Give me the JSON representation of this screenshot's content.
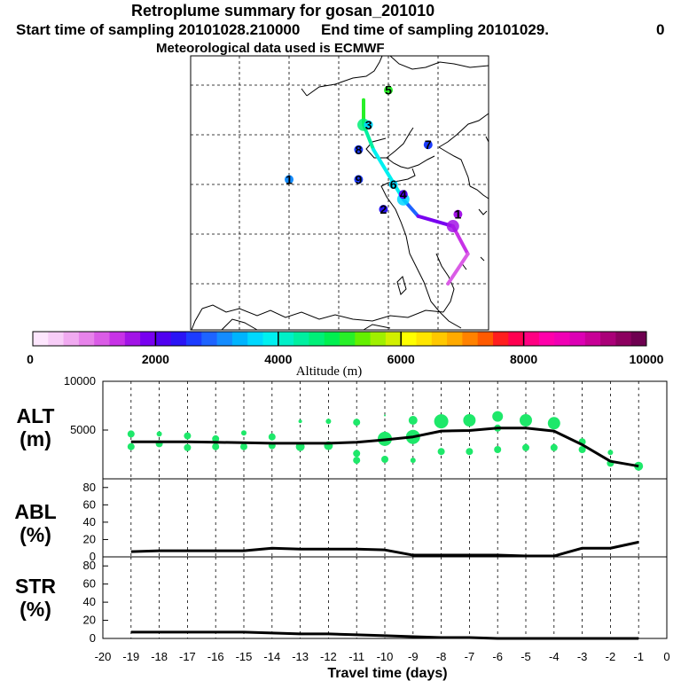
{
  "header": {
    "title": "Retroplume summary for gosan_201010",
    "start": "Start time of sampling 20101028.210000",
    "end": "End time of sampling 20101029.",
    "end_suffix": "0",
    "met": "Meteorological data used is ECMWF"
  },
  "map": {
    "trajectory": [
      {
        "lon": 117.5,
        "lat": 48.5,
        "alt": 5500
      },
      {
        "lon": 117.5,
        "lat": 46.0,
        "alt": 4500
      },
      {
        "lon": 118.5,
        "lat": 43.5,
        "alt": 4000
      },
      {
        "lon": 121.5,
        "lat": 38.5,
        "alt": 3600
      },
      {
        "lon": 123.0,
        "lat": 36.8,
        "alt": 2200
      },
      {
        "lon": 126.5,
        "lat": 35.8,
        "alt": 1500
      },
      {
        "lon": 128.0,
        "lat": 33.0,
        "alt": 1200
      },
      {
        "lon": 126.0,
        "lat": 30.0,
        "alt": 1100
      }
    ],
    "markers": [
      {
        "label": "5",
        "lon": 120.0,
        "lat": 49.5,
        "alt": 5000
      },
      {
        "label": "3",
        "lon": 118.0,
        "lat": 46.0,
        "alt": 3500
      },
      {
        "label": "8",
        "lon": 117.0,
        "lat": 43.5,
        "alt": 2500
      },
      {
        "label": "7",
        "lon": 124.0,
        "lat": 44.0,
        "alt": 2500
      },
      {
        "label": "1",
        "lon": 110.0,
        "lat": 40.5,
        "alt": 3000
      },
      {
        "label": "9",
        "lon": 117.0,
        "lat": 40.5,
        "alt": 2500
      },
      {
        "label": "2",
        "lon": 119.5,
        "lat": 37.5,
        "alt": 2300
      },
      {
        "label": "6",
        "lon": 120.5,
        "lat": 40.0,
        "alt": 3500
      },
      {
        "label": "4",
        "lon": 121.5,
        "lat": 39.0,
        "alt": 2000
      },
      {
        "label": "1",
        "lon": 127.0,
        "lat": 37.0,
        "alt": 1500
      }
    ]
  },
  "colorbar": {
    "tick_labels": [
      "0",
      "2000",
      "4000",
      "6000",
      "8000",
      "10000"
    ],
    "title": "Altitude (m)"
  },
  "panels": {
    "alt": {
      "label_line1": "ALT",
      "label_line2": "(m)"
    },
    "abl": {
      "label_line1": "ABL",
      "label_line2": "(%)"
    },
    "str": {
      "label_line1": "STR",
      "label_line2": "(%)"
    }
  },
  "xaxis": {
    "title": "Travel time (days)"
  },
  "chart_data": {
    "type": "line",
    "x": [
      -19,
      -18,
      -17,
      -16,
      -15,
      -14,
      -13,
      -12,
      -11,
      -10,
      -9,
      -8,
      -7,
      -6,
      -5,
      -4,
      -3,
      -2,
      -1
    ],
    "xlim": [
      -20,
      0
    ],
    "xtick_labels": [
      "-20",
      "-19",
      "-18",
      "-17",
      "-16",
      "-15",
      "-14",
      "-13",
      "-12",
      "-11",
      "-10",
      "-9",
      "-8",
      "-7",
      "-6",
      "-5",
      "-4",
      "-3",
      "-2",
      "-1",
      "0"
    ],
    "xlabel": "Travel time (days)",
    "series": [
      {
        "name": "ALT",
        "unit": "m",
        "ylim": [
          0,
          10000
        ],
        "ytick_labels": [
          "5000",
          "10000"
        ],
        "values": [
          3800,
          3800,
          3800,
          3750,
          3700,
          3650,
          3650,
          3650,
          3750,
          4000,
          4300,
          4900,
          4950,
          5200,
          5200,
          4900,
          3500,
          1800,
          1300
        ]
      },
      {
        "name": "ABL",
        "unit": "%",
        "ylim": [
          0,
          90
        ],
        "ytick_labels": [
          "0",
          "20",
          "40",
          "60",
          "80"
        ],
        "values": [
          6,
          7,
          7,
          7,
          7,
          10,
          9,
          9,
          9,
          8,
          2,
          2,
          2,
          2,
          1,
          1,
          10,
          10,
          17
        ]
      },
      {
        "name": "STR",
        "unit": "%",
        "ylim": [
          0,
          90
        ],
        "ytick_labels": [
          "0",
          "20",
          "40",
          "60",
          "80"
        ],
        "values": [
          7,
          7,
          7,
          7,
          7,
          6,
          5,
          5,
          4,
          3,
          2,
          1,
          1,
          0,
          0,
          0,
          0,
          0,
          0
        ]
      }
    ],
    "alt_spread_points": [
      {
        "x": -19,
        "y": 4600,
        "r": 4
      },
      {
        "x": -19,
        "y": 3300,
        "r": 4
      },
      {
        "x": -18,
        "y": 4600,
        "r": 3
      },
      {
        "x": -18,
        "y": 3600,
        "r": 4
      },
      {
        "x": -17,
        "y": 4400,
        "r": 4
      },
      {
        "x": -17,
        "y": 3200,
        "r": 4
      },
      {
        "x": -16,
        "y": 4100,
        "r": 4
      },
      {
        "x": -16,
        "y": 3300,
        "r": 4
      },
      {
        "x": -15,
        "y": 4700,
        "r": 3
      },
      {
        "x": -15,
        "y": 3300,
        "r": 4
      },
      {
        "x": -14,
        "y": 4300,
        "r": 4
      },
      {
        "x": -14,
        "y": 3400,
        "r": 4
      },
      {
        "x": -13,
        "y": 5900,
        "r": 2
      },
      {
        "x": -13,
        "y": 3300,
        "r": 5
      },
      {
        "x": -12,
        "y": 5900,
        "r": 3
      },
      {
        "x": -12,
        "y": 3400,
        "r": 5
      },
      {
        "x": -11,
        "y": 5800,
        "r": 4
      },
      {
        "x": -11,
        "y": 2600,
        "r": 4
      },
      {
        "x": -11,
        "y": 1900,
        "r": 4
      },
      {
        "x": -10,
        "y": 6500,
        "r": 1
      },
      {
        "x": -10,
        "y": 4100,
        "r": 8
      },
      {
        "x": -10,
        "y": 2000,
        "r": 4
      },
      {
        "x": -9,
        "y": 6000,
        "r": 5
      },
      {
        "x": -9,
        "y": 4300,
        "r": 8
      },
      {
        "x": -9,
        "y": 1900,
        "r": 3
      },
      {
        "x": -8,
        "y": 5900,
        "r": 8
      },
      {
        "x": -8,
        "y": 2800,
        "r": 4
      },
      {
        "x": -7,
        "y": 6000,
        "r": 7
      },
      {
        "x": -7,
        "y": 2800,
        "r": 4
      },
      {
        "x": -6,
        "y": 6400,
        "r": 6
      },
      {
        "x": -6,
        "y": 5200,
        "r": 4
      },
      {
        "x": -6,
        "y": 3000,
        "r": 4
      },
      {
        "x": -5,
        "y": 6000,
        "r": 7
      },
      {
        "x": -5,
        "y": 3200,
        "r": 4
      },
      {
        "x": -4,
        "y": 5700,
        "r": 7
      },
      {
        "x": -4,
        "y": 3200,
        "r": 4
      },
      {
        "x": -3,
        "y": 3800,
        "r": 4
      },
      {
        "x": -3,
        "y": 3000,
        "r": 4
      },
      {
        "x": -2,
        "y": 2700,
        "r": 3
      },
      {
        "x": -2,
        "y": 1600,
        "r": 4
      },
      {
        "x": -1,
        "y": 1300,
        "r": 5
      }
    ]
  }
}
